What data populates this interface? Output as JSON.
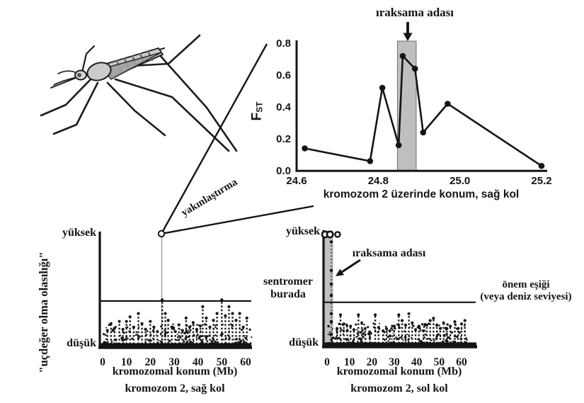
{
  "canvas": {
    "bg": "#ffffff",
    "ink": "#141414",
    "band_fill": "#bfbfbf",
    "band_stroke": "#6e6e6e",
    "drop_line_gray": "#a8a8a8"
  },
  "mosquito": {
    "body_fill": "#cbcbcb",
    "head_fill": "#d6d6d6",
    "wing_fill": "#a2a2a2",
    "stripe": "#6d6d6d",
    "outline": "#1c1c1c"
  },
  "zoom_link": {
    "label": "yakınlaştırma"
  },
  "chart_data": [
    {
      "id": "fst_profile",
      "type": "line",
      "title": "ıraksama adası",
      "ylabel_main": "F",
      "ylabel_sub": "ST",
      "xlabel": "kromozom 2 üzerinde konum, sağ kol",
      "x": [
        24.62,
        24.78,
        24.81,
        24.85,
        24.86,
        24.89,
        24.91,
        24.97,
        25.2
      ],
      "y": [
        0.14,
        0.06,
        0.52,
        0.16,
        0.72,
        0.64,
        0.24,
        0.42,
        0.03
      ],
      "xticks": [
        "24.6",
        "24.8",
        "25.0",
        "25.2"
      ],
      "xtick_vals": [
        24.6,
        24.8,
        25.0,
        25.2
      ],
      "yticks": [
        "0.0",
        "0.2",
        "0.4",
        "0.6",
        "0.8"
      ],
      "ytick_vals": [
        0,
        0.2,
        0.4,
        0.6,
        0.8
      ],
      "xlim": [
        24.6,
        25.2
      ],
      "ylim": [
        0,
        0.8
      ],
      "band_x": [
        24.847,
        24.893
      ],
      "grid": false
    },
    {
      "id": "outlier_scan_right_arm",
      "type": "scatter",
      "ylabel": "\"uçdeğer olma olasılığı\"",
      "y_top_label": "yüksek",
      "y_bottom_label": "düşük",
      "xlabel": "kromozomal konum (Mb)",
      "xlabel2": "kromozom 2, sağ kol",
      "xticks": [
        "0",
        "10",
        "20",
        "30",
        "40",
        "50",
        "60"
      ],
      "xtick_vals": [
        0,
        10,
        20,
        30,
        40,
        50,
        60
      ],
      "xlim": [
        0,
        62
      ],
      "ylim_labels": [
        "düşük",
        "yüksek"
      ],
      "threshold_rel": 0.4,
      "highlight_x": 25,
      "spikes": [
        [
          2,
          0.14
        ],
        [
          3.5,
          0.2
        ],
        [
          5,
          0.16
        ],
        [
          7,
          0.22
        ],
        [
          8.5,
          0.15
        ],
        [
          10,
          0.22
        ],
        [
          11.5,
          0.26
        ],
        [
          13,
          0.17
        ],
        [
          15,
          0.29
        ],
        [
          16.5,
          0.2
        ],
        [
          18,
          0.15
        ],
        [
          20,
          0.22
        ],
        [
          21.5,
          0.17
        ],
        [
          23,
          0.13
        ],
        [
          25,
          0.41
        ],
        [
          26.3,
          0.29
        ],
        [
          27.5,
          0.23
        ],
        [
          29,
          0.17
        ],
        [
          30.5,
          0.13
        ],
        [
          32,
          0.19
        ],
        [
          33.5,
          0.14
        ],
        [
          35,
          0.25
        ],
        [
          36.5,
          0.17
        ],
        [
          38,
          0.21
        ],
        [
          39.5,
          0.15
        ],
        [
          41,
          0.18
        ],
        [
          42,
          0.35
        ],
        [
          43.5,
          0.25
        ],
        [
          45,
          0.17
        ],
        [
          46.5,
          0.23
        ],
        [
          48,
          0.29
        ],
        [
          50,
          0.41
        ],
        [
          51.5,
          0.27
        ],
        [
          53,
          0.35
        ],
        [
          54.5,
          0.29
        ],
        [
          56,
          0.23
        ],
        [
          57.5,
          0.29
        ],
        [
          59,
          0.17
        ],
        [
          60.5,
          0.25
        ]
      ],
      "noise": {
        "count": 300,
        "seed": 11,
        "max_rel": 0.19
      }
    },
    {
      "id": "outlier_scan_left_arm",
      "type": "scatter",
      "y_top_label": "yüksek",
      "y_bottom_label": "düşük",
      "xlabel": "kromozomal konum (Mb)",
      "xlabel2": "kromozom 2, sol kol",
      "annotation": "ıraksama adası",
      "centromere_label_line1": "sentromer",
      "centromere_label_line2": "burada",
      "threshold_label_line1": "önem eşiği",
      "threshold_label_line2": "(veya deniz seviyesi)",
      "xticks": [
        "0",
        "10",
        "20",
        "30",
        "40",
        "50",
        "60"
      ],
      "xtick_vals": [
        0,
        10,
        20,
        30,
        40,
        50,
        60
      ],
      "xlim": [
        0,
        62
      ],
      "threshold_rel": 0.38,
      "band_mb": [
        -1.6,
        2.5
      ],
      "island_column": {
        "x": 1.9,
        "dots": [
          0.1,
          0.21,
          0.28,
          0.44,
          0.54,
          0.66,
          0.91
        ]
      },
      "top_circles": {
        "y": 0.975,
        "x": [
          -0.9,
          1.3,
          4.7
        ]
      },
      "spikes": [
        [
          4.5,
          0.15
        ],
        [
          6,
          0.27
        ],
        [
          7.5,
          0.19
        ],
        [
          9,
          0.13
        ],
        [
          10.5,
          0.17
        ],
        [
          12,
          0.14
        ],
        [
          14,
          0.27
        ],
        [
          15.5,
          0.2
        ],
        [
          17,
          0.15
        ],
        [
          19,
          0.12
        ],
        [
          21.5,
          0.27
        ],
        [
          23,
          0.16
        ],
        [
          25,
          0.13
        ],
        [
          26.5,
          0.15
        ],
        [
          28,
          0.13
        ],
        [
          30,
          0.17
        ],
        [
          32,
          0.27
        ],
        [
          33.5,
          0.22
        ],
        [
          35,
          0.18
        ],
        [
          36.5,
          0.28
        ],
        [
          38,
          0.2
        ],
        [
          39.5,
          0.14
        ],
        [
          41,
          0.17
        ],
        [
          43,
          0.13
        ],
        [
          44.5,
          0.18
        ],
        [
          46,
          0.22
        ],
        [
          47.5,
          0.24
        ],
        [
          49,
          0.18
        ],
        [
          50.5,
          0.15
        ],
        [
          52,
          0.2
        ],
        [
          53.5,
          0.15
        ],
        [
          55,
          0.17
        ],
        [
          57,
          0.21
        ],
        [
          58.5,
          0.15
        ],
        [
          60,
          0.19
        ],
        [
          61.5,
          0.22
        ]
      ],
      "noise": {
        "count": 300,
        "seed": 23,
        "max_rel": 0.19
      }
    }
  ]
}
